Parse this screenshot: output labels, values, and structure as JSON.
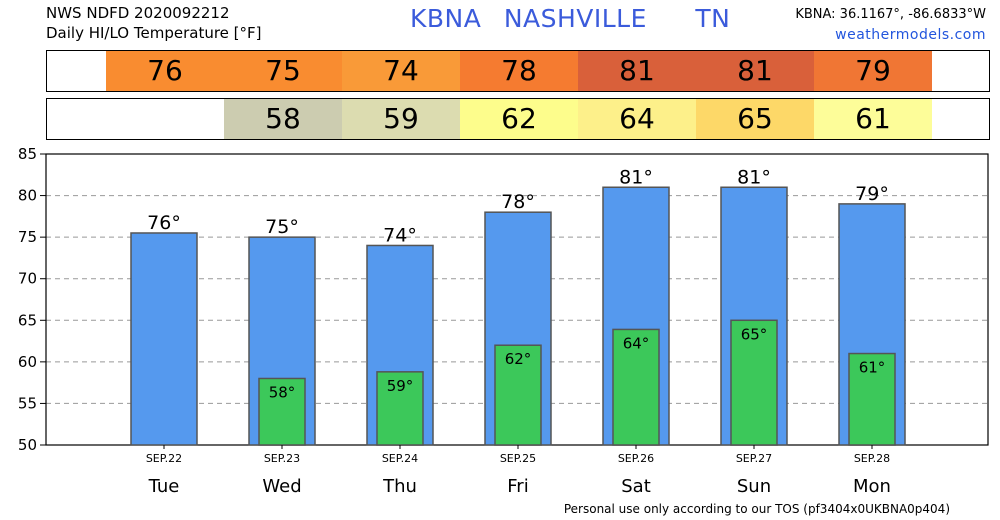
{
  "header": {
    "line1": "NWS NDFD 2020092212",
    "line2": "Daily HI/LO Temperature [°F]",
    "station": "KBNA",
    "city": "NASHVILLE",
    "state": "TN",
    "coords": "KBNA: 36.1167°, -86.6833°W",
    "site": "weathermodels.com"
  },
  "hi_strip": [
    {
      "text": "76",
      "color": "#f98c30"
    },
    {
      "text": "75",
      "color": "#f98c30"
    },
    {
      "text": "74",
      "color": "#f99a38"
    },
    {
      "text": "78",
      "color": "#f57b30"
    },
    {
      "text": "81",
      "color": "#d9603a"
    },
    {
      "text": "81",
      "color": "#d9603a"
    },
    {
      "text": "79",
      "color": "#f07634"
    }
  ],
  "lo_strip": [
    {
      "text": "",
      "color": "#ffffff"
    },
    {
      "text": "58",
      "color": "#ccccb0"
    },
    {
      "text": "59",
      "color": "#dcdcb0"
    },
    {
      "text": "62",
      "color": "#fdfd8c"
    },
    {
      "text": "64",
      "color": "#fdf08a"
    },
    {
      "text": "65",
      "color": "#fdd868"
    },
    {
      "text": "61",
      "color": "#fdfd99"
    }
  ],
  "chart_data": {
    "type": "bar",
    "categories": [
      "Tue",
      "Wed",
      "Thu",
      "Fri",
      "Sat",
      "Sun",
      "Mon"
    ],
    "dates": [
      "SEP.22",
      "SEP.23",
      "SEP.24",
      "SEP.25",
      "SEP.26",
      "SEP.27",
      "SEP.28"
    ],
    "series": [
      {
        "values": [
          75.5,
          75,
          74,
          78,
          81,
          81,
          79
        ],
        "labels": [
          "76°",
          "75°",
          "74°",
          "78°",
          "81°",
          "81°",
          "79°"
        ],
        "color": "#5599ee"
      },
      {
        "values": [
          null,
          58,
          58.8,
          62,
          63.9,
          65,
          61
        ],
        "labels": [
          "",
          "58°",
          "59°",
          "62°",
          "64°",
          "65°",
          "61°"
        ],
        "color": "#3cc85a"
      }
    ],
    "ylim": [
      50,
      85
    ],
    "yticks": [
      50,
      55,
      60,
      65,
      70,
      75,
      80,
      85
    ],
    "grid": true
  },
  "footer": "Personal use only according to our TOS (pf3404x0UKBNA0p404)"
}
